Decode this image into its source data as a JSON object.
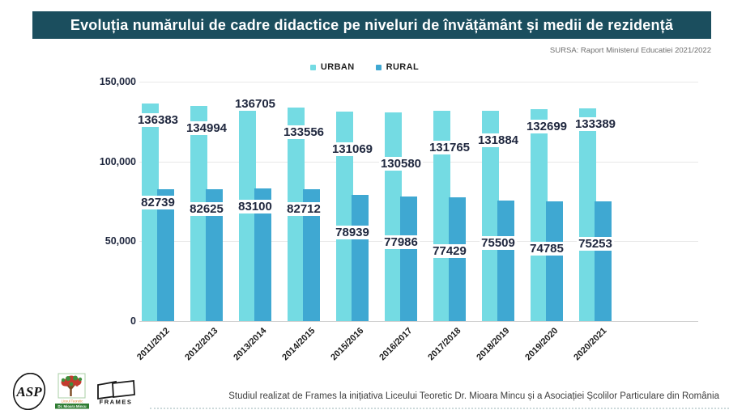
{
  "header": {
    "title": "Evoluția numărului de cadre didactice pe niveluri de învățământ și medii de rezidență",
    "source": "SURSA: Raport Ministerul Educatiei 2021/2022"
  },
  "legend": {
    "urban": {
      "label": "URBAN",
      "color": "#74dbe3"
    },
    "rural": {
      "label": "RURAL",
      "color": "#3fa8d2"
    }
  },
  "chart_data": {
    "type": "bar",
    "title": "Evoluția numărului de cadre didactice pe niveluri de învățământ și medii de rezidență",
    "categories": [
      "2011/2012",
      "2012/2013",
      "2013/2014",
      "2014/2015",
      "2015/2016",
      "2016/2017",
      "2017/2018",
      "2018/2019",
      "2019/2020",
      "2020/2021"
    ],
    "series": [
      {
        "name": "URBAN",
        "color": "#74dbe3",
        "values": [
          136383,
          134994,
          136705,
          133556,
          131069,
          130580,
          131765,
          131884,
          132699,
          133389
        ]
      },
      {
        "name": "RURAL",
        "color": "#3fa8d2",
        "values": [
          82739,
          82625,
          83100,
          82712,
          78939,
          77986,
          77429,
          75509,
          74785,
          75253
        ]
      }
    ],
    "ylim": [
      0,
      150000
    ],
    "yticks": [
      {
        "value": 150000,
        "label": "150,000"
      },
      {
        "value": 100000,
        "label": "100,000"
      },
      {
        "value": 50000,
        "label": "50,000"
      },
      {
        "value": 0,
        "label": "0"
      }
    ],
    "grid": true,
    "legend_position": "top-center",
    "value_labels": true,
    "label_dy": {
      "urban": [
        12,
        19,
        -7,
        22,
        38,
        55,
        37,
        28,
        13,
        11
      ],
      "rural": [
        8,
        16,
        14,
        16,
        38,
        48,
        58,
        44,
        50,
        44
      ]
    }
  },
  "footer": {
    "credit": "Studiul realizat de  Frames la inițiativa Liceului Teoretic Dr. Mioara Mincu și a Asociației Școlilor Particulare din România",
    "logos": {
      "asp": "ASP",
      "school": {
        "line1": "Liceul Teoretic",
        "line2": "Dr. Mioara Mincu"
      },
      "frames": "FRAMES"
    }
  },
  "colors": {
    "title_bg": "#1b4e5e",
    "title_text": "#ffffff",
    "value_label": "#20283f",
    "grid": "#e8e8e8"
  }
}
